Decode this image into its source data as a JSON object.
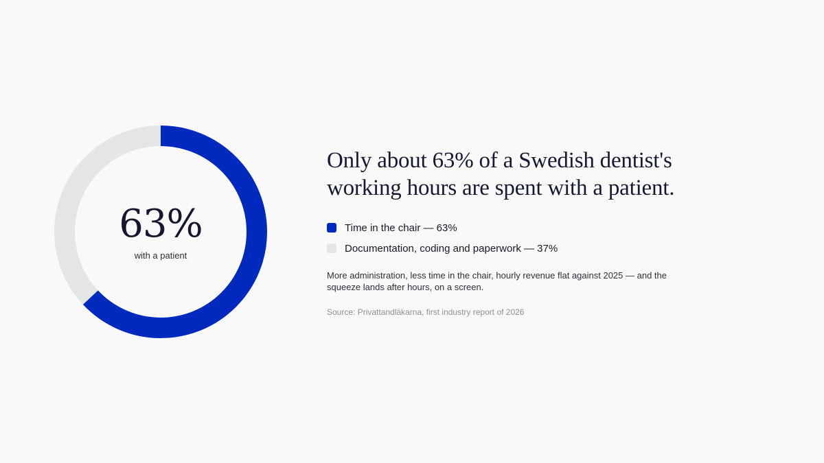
{
  "chart_data": {
    "type": "pie",
    "style": "donut",
    "slices": [
      {
        "label": "Time in the chair",
        "value": 63,
        "color": "#0029bd"
      },
      {
        "label": "Documentation, coding and paperwork",
        "value": 37,
        "color": "#e4e5e7"
      }
    ],
    "center_value": "63%",
    "center_label": "with a patient",
    "title": "Only about 63% of a Swedish dentist's working hours are spent with a patient.",
    "legend_placement": "right"
  },
  "legend": {
    "items": [
      {
        "text": "Time in the chair — 63%",
        "color": "#0029bd"
      },
      {
        "text": "Documentation, coding and paperwork — 37%",
        "color": "#e4e5e7"
      }
    ]
  },
  "note": "More administration, less time in the chair, hourly revenue flat against 2025 — and the squeeze lands after hours, on a screen.",
  "source": "Source: Privattandläkarna, first industry report of 2026"
}
